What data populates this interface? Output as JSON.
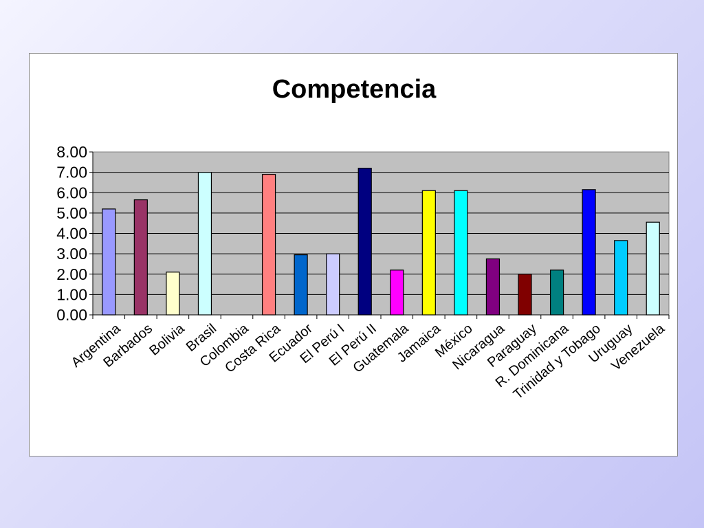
{
  "chart_data": {
    "type": "bar",
    "title": "Competencia",
    "xlabel": "",
    "ylabel": "",
    "ylim": [
      0,
      8
    ],
    "yticks": [
      "0.00",
      "1.00",
      "2.00",
      "3.00",
      "4.00",
      "5.00",
      "6.00",
      "7.00",
      "8.00"
    ],
    "grid": true,
    "legend": "none",
    "categories": [
      "Argentina",
      "Barbados",
      "Bolivia",
      "Brasil",
      "Colombia",
      "Costa Rica",
      "Ecuador",
      "El Perú I",
      "El Perú II",
      "Guatemala",
      "Jamaica",
      "México",
      "Nicaragua",
      "Paraguay",
      "R. Dominicana",
      "Trinidad y Tobago",
      "Uruguay",
      "Venezuela"
    ],
    "values": [
      5.2,
      5.65,
      2.1,
      7.0,
      0,
      6.9,
      2.95,
      3.0,
      7.2,
      2.2,
      6.1,
      6.1,
      2.75,
      2.0,
      2.2,
      6.15,
      3.65,
      4.55
    ],
    "colors": [
      "#9999ff",
      "#993366",
      "#ffffcc",
      "#ccffff",
      "#ffffff",
      "#ff8080",
      "#0066cc",
      "#ccccff",
      "#000080",
      "#ff00ff",
      "#ffff00",
      "#00ffff",
      "#800080",
      "#800000",
      "#008080",
      "#0000ff",
      "#00ccff",
      "#ccffff"
    ],
    "plot_background": "#c0c0c0"
  }
}
